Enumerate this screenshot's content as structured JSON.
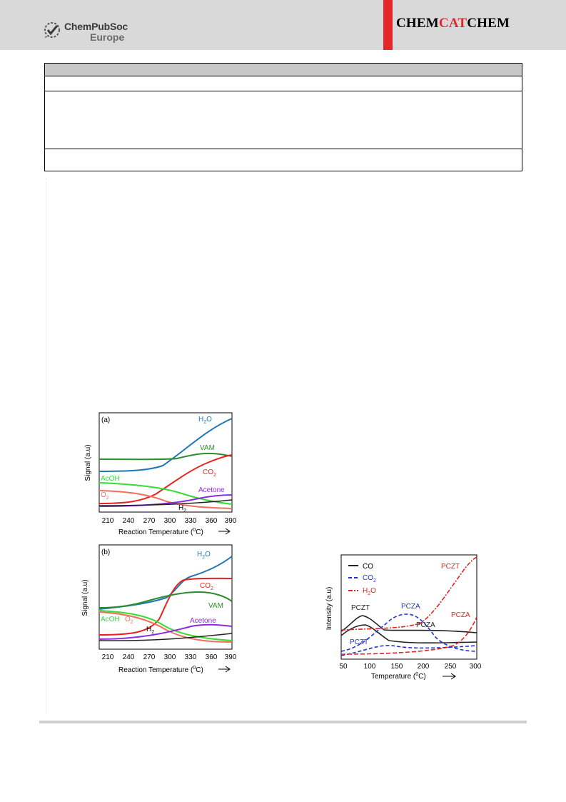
{
  "header": {
    "publisher_line1": "ChemPubSoc",
    "publisher_line2": "Europe",
    "journal_part1": "CHEM",
    "journal_part2": "CAT",
    "journal_part3": "CHEM",
    "brand_red": "#e5262b",
    "header_gray": "#d9d9d9"
  },
  "figures": {
    "panel_a": {
      "panel_label": "(a)",
      "ylabel": "Signal (a.u)",
      "xlabel": "Reaction Temperature (",
      "xlabel_deg": "0",
      "xlabel_end": "C)",
      "x_ticks": [
        "210",
        "240",
        "270",
        "300",
        "330",
        "360",
        "390"
      ],
      "labels": {
        "h2o": "H",
        "h2o_sub": "2",
        "h2o_end": "O",
        "vam": "VAM",
        "co2": "CO",
        "co2_sub": "2",
        "acoh": "AcOH",
        "acetone": "Acetone",
        "o2": "O",
        "o2_sub": "2",
        "h2": "H",
        "h2_sub": "2"
      }
    },
    "panel_b": {
      "panel_label": "(b)",
      "ylabel": "Signal (a.u)",
      "xlabel": "Reaction Temperature (",
      "xlabel_deg": "0",
      "xlabel_end": "C)",
      "x_ticks": [
        "210",
        "240",
        "270",
        "300",
        "330",
        "360",
        "390"
      ],
      "labels": {
        "h2o": "H",
        "h2o_sub": "2",
        "h2o_end": "O",
        "co2": "CO",
        "co2_sub": "2",
        "vam": "VAM",
        "acetone": "Acetone",
        "acoh": "AcOH",
        "o2": "O",
        "o2_sub": "2",
        "h2": "H",
        "h2_sub": "2"
      }
    },
    "panel_c": {
      "ylabel": "Intensity (a.u)",
      "xlabel": "Temperature (",
      "xlabel_deg": "0",
      "xlabel_end": "C)",
      "x_ticks": [
        "50",
        "100",
        "150",
        "200",
        "250",
        "300"
      ],
      "legend": {
        "co": "CO",
        "co2": "CO",
        "co2_sub": "2",
        "h2o": "H",
        "h2o_sub": "2",
        "h2o_end": "O"
      },
      "annotations": {
        "pczt_black": "PCZT",
        "pczt_blue": "PCZT",
        "pczt_red": "PCZT",
        "pcza_black": "PCZA",
        "pcza_blue": "PCZA",
        "pcza_red": "PCZA"
      }
    }
  },
  "colors": {
    "h2o": "#1f77b4",
    "vam": "#2e8b2e",
    "co2": "#e8231f",
    "acoh": "#33dd33",
    "o2": "#f07060",
    "acetone": "#8a2be2",
    "h2": "#222222",
    "co_c": "#222222",
    "co2_c": "#2233dd",
    "h2o_c": "#e8231f"
  }
}
